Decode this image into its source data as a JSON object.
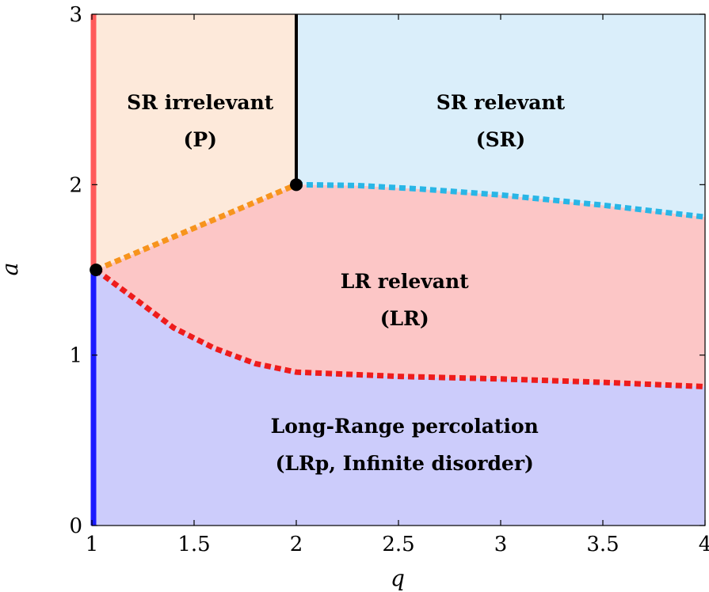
{
  "chart_data": {
    "type": "area",
    "title": "",
    "xlabel": "q",
    "ylabel": "a",
    "xlim": [
      1,
      4
    ],
    "ylim": [
      0,
      3
    ],
    "xticks": [
      1,
      1.5,
      2,
      2.5,
      3,
      3.5,
      4
    ],
    "xtick_labels": [
      "1",
      "1.5",
      "2",
      "2.5",
      "3",
      "3.5",
      "4"
    ],
    "yticks": [
      0,
      1,
      2,
      3
    ],
    "ytick_labels": [
      "0",
      "1",
      "2",
      "3"
    ],
    "grid": false,
    "regions": [
      {
        "id": "sr-irrelevant",
        "line1": "SR irrelevant",
        "line2": "(P)",
        "color": "#fde9da",
        "label_at": [
          1.53,
          2.35
        ]
      },
      {
        "id": "sr-relevant",
        "line1": "SR relevant",
        "line2": "(SR)",
        "color": "#daeefa",
        "label_at": [
          3.0,
          2.35
        ]
      },
      {
        "id": "lr-relevant",
        "line1": "LR relevant",
        "line2": "(LR)",
        "color": "#fcc6c6",
        "label_at": [
          2.53,
          1.3
        ]
      },
      {
        "id": "lr-percolation",
        "line1": "Long-Range percolation",
        "line2": "(LRp, Infinite disorder)",
        "color": "#ccccfb",
        "label_at": [
          2.53,
          0.45
        ]
      }
    ],
    "boundaries": [
      {
        "id": "p-lr-boundary",
        "style": "dotted",
        "color": "#f7941d",
        "x": [
          1.02,
          2.0
        ],
        "y": [
          1.5,
          2.0
        ]
      },
      {
        "id": "sr-lr-boundary",
        "style": "dotted",
        "color": "#29b6e6",
        "x": [
          2.0,
          2.3,
          2.6,
          3.0,
          3.5,
          4.0
        ],
        "y": [
          2.0,
          1.995,
          1.975,
          1.94,
          1.88,
          1.81
        ]
      },
      {
        "id": "lr-lrp-boundary",
        "style": "dotted",
        "color": "#ee1c1c",
        "x": [
          1.02,
          1.2,
          1.4,
          1.6,
          1.8,
          2.0,
          2.5,
          3.0,
          3.5,
          4.0
        ],
        "y": [
          1.5,
          1.34,
          1.16,
          1.04,
          0.95,
          0.9,
          0.875,
          0.86,
          0.84,
          0.815
        ]
      },
      {
        "id": "p-sr-boundary",
        "style": "solid",
        "color": "#000000",
        "x": [
          2.0,
          2.0
        ],
        "y": [
          2.0,
          3.0
        ]
      }
    ],
    "left_edge": [
      {
        "id": "edge-upper",
        "color": "#ff5a5a",
        "y": [
          1.5,
          3.0
        ]
      },
      {
        "id": "edge-lower",
        "color": "#1a1aff",
        "y": [
          0,
          1.5
        ]
      }
    ],
    "points": [
      {
        "id": "lower-critical-point",
        "x": 1.02,
        "y": 1.5
      },
      {
        "id": "upper-critical-point",
        "x": 2.0,
        "y": 2.0
      }
    ]
  }
}
